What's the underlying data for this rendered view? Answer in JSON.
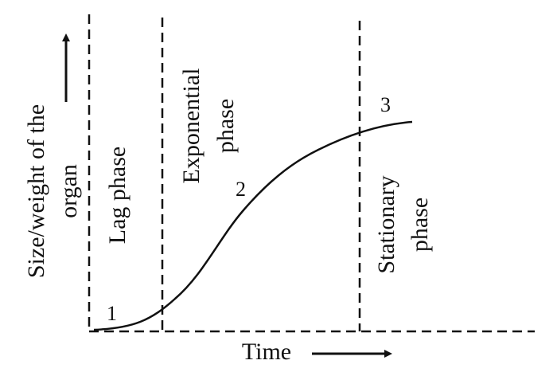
{
  "diagram": {
    "y_axis_label_line1": "Size/weight of the",
    "y_axis_label_line2": "organ",
    "x_axis_label": "Time",
    "phases": {
      "lag": {
        "number": "1",
        "label": "Lag phase"
      },
      "exponential": {
        "number": "2",
        "label_line1": "Exponential",
        "label_line2": "phase"
      },
      "stationary": {
        "number": "3",
        "label_line1": "Stationary",
        "label_line2": "phase"
      }
    },
    "colors": {
      "ink": "#111111",
      "background": "#ffffff"
    }
  }
}
